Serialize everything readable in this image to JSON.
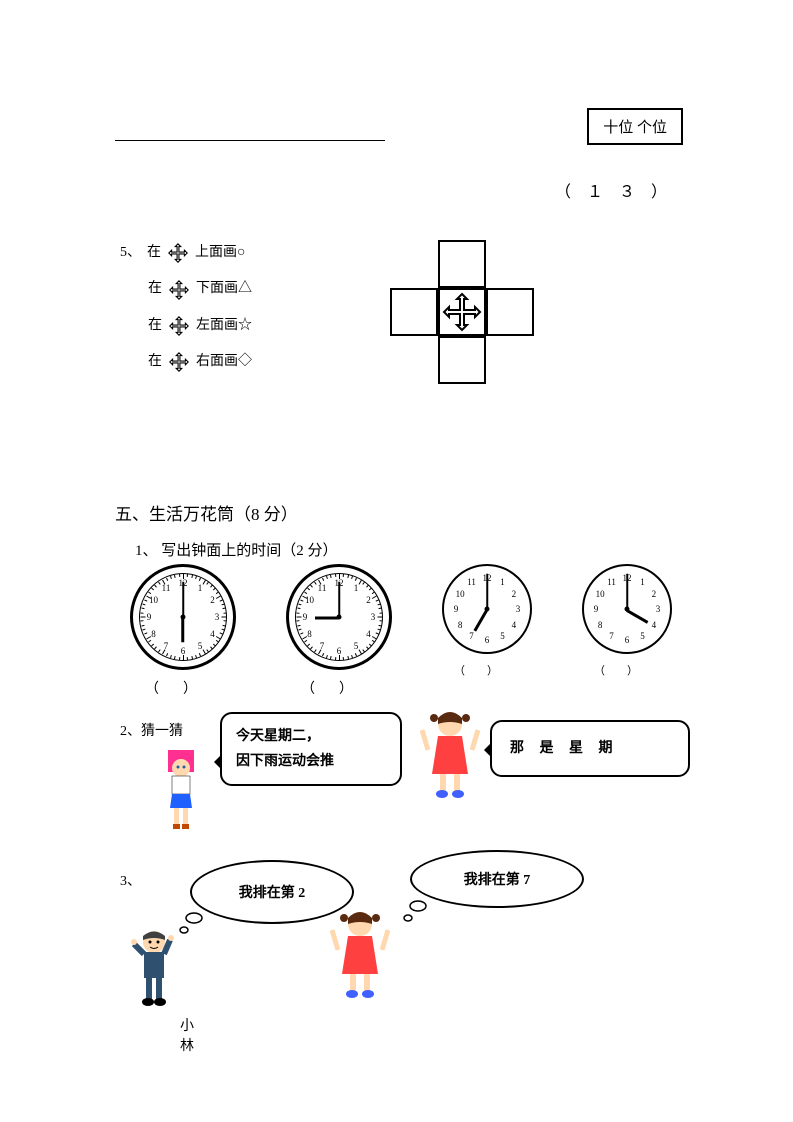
{
  "place_labels": "十位  个位",
  "thirteen": "（ １ ３ ）",
  "q5": {
    "num": "5、",
    "lines": [
      "在       上面画○",
      "在       下面画△",
      "在       左面画☆",
      "在       右面画◇"
    ]
  },
  "section5": {
    "title": "五、生活万花筒（8 分）",
    "q1": "1、 写出钟面上的时间（2 分）"
  },
  "clocks": [
    {
      "hour_angle": 90,
      "minute_angle": -90,
      "size": "big"
    },
    {
      "hour_angle": 180,
      "minute_angle": -90,
      "size": "big"
    },
    {
      "hour_angle": 120,
      "minute_angle": -90,
      "size": "small"
    },
    {
      "hour_angle": 30,
      "minute_angle": -90,
      "size": "small"
    }
  ],
  "paren_big": "（）",
  "paren_small": "（）",
  "q52": {
    "num": "2、猜一猜",
    "bubble1_line1": "今天星期二，",
    "bubble1_line2": "因下雨运动会推",
    "bubble2": "那 是 星 期"
  },
  "q53": {
    "num": "3、",
    "bubble1": "我排在第 2",
    "bubble2": "我排在第 7",
    "name": "小林"
  },
  "colors": {
    "girl_hair": "#ff3090",
    "girl_top": "#ffffff",
    "girl_skirt": "#2060ff",
    "girl_shoe": "#c04800",
    "girl2_hair": "#5a2a10",
    "girl2_dress": "#ff4040",
    "girl2_shoe": "#4060ff",
    "boy_hair": "#404040",
    "boy_suit": "#305070",
    "skin": "#ffd8b0"
  }
}
